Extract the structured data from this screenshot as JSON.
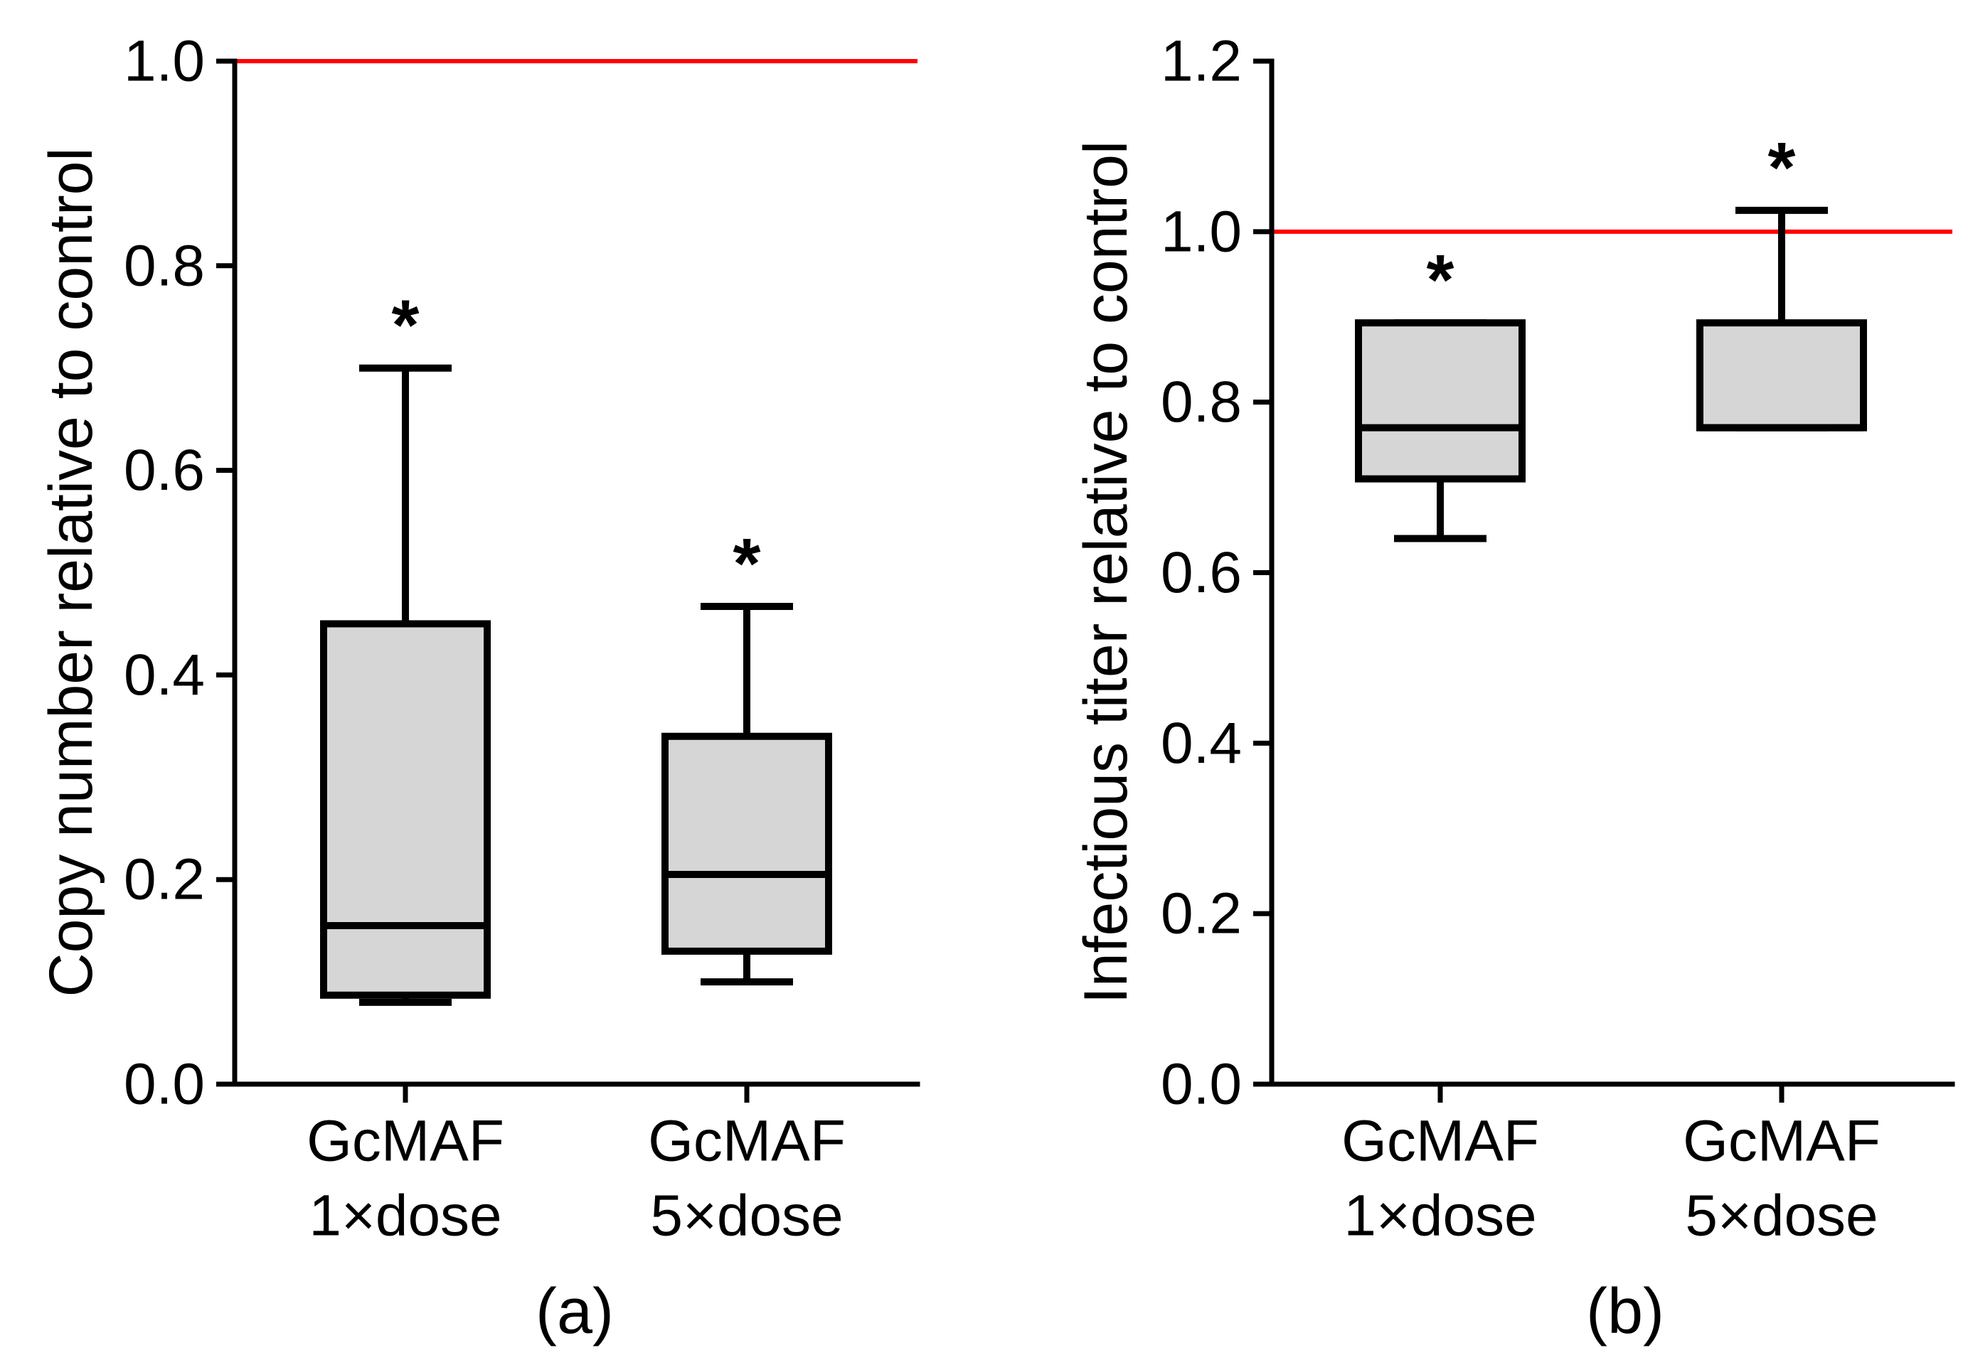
{
  "chart_data": [
    {
      "type": "boxplot",
      "panel_label": "(a)",
      "ylabel": "Copy number relative to control",
      "xlabel": "",
      "ylim": [
        0,
        1.0
      ],
      "yticks": [
        "0.0",
        "0.2",
        "0.4",
        "0.6",
        "0.8",
        "1.0"
      ],
      "reference_line": 1.0,
      "categories": [
        {
          "line1": "GcMAF",
          "line2": "1×dose"
        },
        {
          "line1": "GcMAF",
          "line2": "5×dose"
        }
      ],
      "boxes": [
        {
          "min": 0.08,
          "q1": 0.087,
          "median": 0.155,
          "q3": 0.45,
          "max": 0.7,
          "significance": "*"
        },
        {
          "min": 0.1,
          "q1": 0.13,
          "median": 0.205,
          "q3": 0.34,
          "max": 0.467,
          "significance": "*"
        }
      ]
    },
    {
      "type": "boxplot",
      "panel_label": "(b)",
      "ylabel": "Infectious titer relative to control",
      "xlabel": "",
      "ylim": [
        0,
        1.2
      ],
      "yticks": [
        "0.0",
        "0.2",
        "0.4",
        "0.6",
        "0.8",
        "1.0",
        "1.2"
      ],
      "reference_line": 1.0,
      "categories": [
        {
          "line1": "GcMAF",
          "line2": "1×dose"
        },
        {
          "line1": "GcMAF",
          "line2": "5×dose"
        }
      ],
      "boxes": [
        {
          "min": 0.64,
          "q1": 0.71,
          "median": 0.77,
          "q3": 0.893,
          "max": 0.893,
          "significance": "*"
        },
        {
          "min": 0.77,
          "q1": 0.77,
          "median": 0.77,
          "q3": 0.893,
          "max": 1.025,
          "significance": "*"
        }
      ]
    }
  ],
  "colors": {
    "box_fill": "#d6d6d6",
    "reference_line": "#ff0000",
    "axis": "#000000"
  }
}
